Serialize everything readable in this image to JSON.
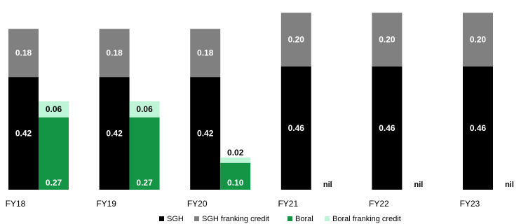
{
  "chart_data": {
    "type": "stacked-bar",
    "title": "",
    "xlabel": "",
    "ylabel": "",
    "categories": [
      "FY18",
      "FY19",
      "FY20",
      "FY21",
      "FY22",
      "FY23"
    ],
    "groups": [
      {
        "name": "SGH",
        "segments": [
          {
            "name": "SGH",
            "color": "#000000",
            "label_color": "#ffffff",
            "values": [
              0.42,
              0.42,
              0.42,
              0.46,
              0.46,
              0.46
            ],
            "labels": [
              "0.42",
              "0.42",
              "0.42",
              "0.46",
              "0.46",
              "0.46"
            ]
          },
          {
            "name": "SGH franking credit",
            "color": "#808080",
            "label_color": "#ffffff",
            "values": [
              0.18,
              0.18,
              0.18,
              0.2,
              0.2,
              0.2
            ],
            "labels": [
              "0.18",
              "0.18",
              "0.18",
              "0.20",
              "0.20",
              "0.20"
            ]
          }
        ]
      },
      {
        "name": "Boral",
        "segments": [
          {
            "name": "Boral",
            "color": "#149445",
            "label_color": "#ffffff",
            "values": [
              0.27,
              0.27,
              0.1,
              0,
              0,
              0
            ],
            "labels": [
              "0.27",
              "0.27",
              "0.10",
              "",
              "",
              ""
            ]
          },
          {
            "name": "Boral franking credit",
            "color": "#bdf5d6",
            "label_color": "#000000",
            "values": [
              0.06,
              0.06,
              0.02,
              0,
              0,
              0
            ],
            "labels": [
              "0.06",
              "0.06",
              "0.02",
              "",
              "",
              ""
            ]
          }
        ]
      }
    ],
    "nil_labels": [
      "",
      "",
      "",
      "nil",
      "nil",
      "nil"
    ],
    "legend": {
      "position": "bottom",
      "entries": [
        {
          "label": "SGH",
          "color": "#000000"
        },
        {
          "label": "SGH franking credit",
          "color": "#808080"
        },
        {
          "label": "Boral",
          "color": "#149445"
        },
        {
          "label": "Boral franking credit",
          "color": "#bdf5d6"
        }
      ]
    },
    "gridlines": false
  }
}
